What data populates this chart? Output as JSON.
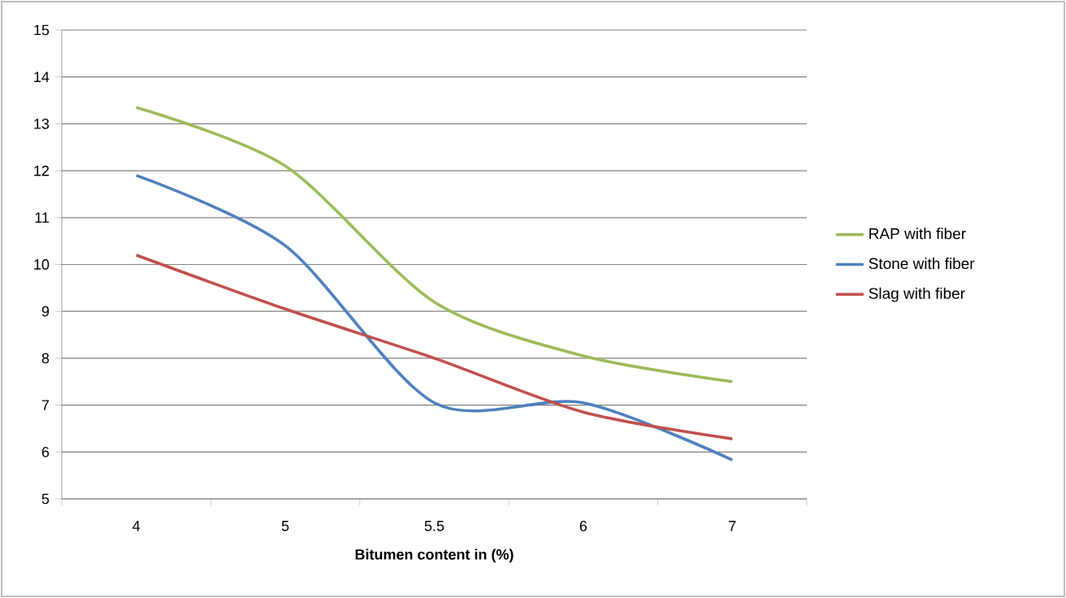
{
  "chart_data": {
    "type": "line",
    "xlabel": "Bitumen content in (%)",
    "categories": [
      "4",
      "5",
      "5.5",
      "6",
      "7"
    ],
    "series": [
      {
        "name": "RAP with fiber",
        "color": "#9bbb59",
        "values": [
          13.35,
          12.1,
          9.2,
          8.05,
          7.5
        ]
      },
      {
        "name": "Stone with    fiber",
        "color": "#4f81bd",
        "values": [
          11.9,
          10.4,
          7.05,
          7.05,
          5.83
        ]
      },
      {
        "name": "Slag with fiber",
        "color": "#c0504d",
        "values": [
          10.2,
          9.05,
          8.0,
          6.85,
          6.28
        ]
      }
    ],
    "ylim": [
      5,
      15
    ],
    "yticks": [
      5,
      6,
      7,
      8,
      9,
      10,
      11,
      12,
      13,
      14,
      15
    ],
    "grid": "y",
    "legend": "right"
  }
}
